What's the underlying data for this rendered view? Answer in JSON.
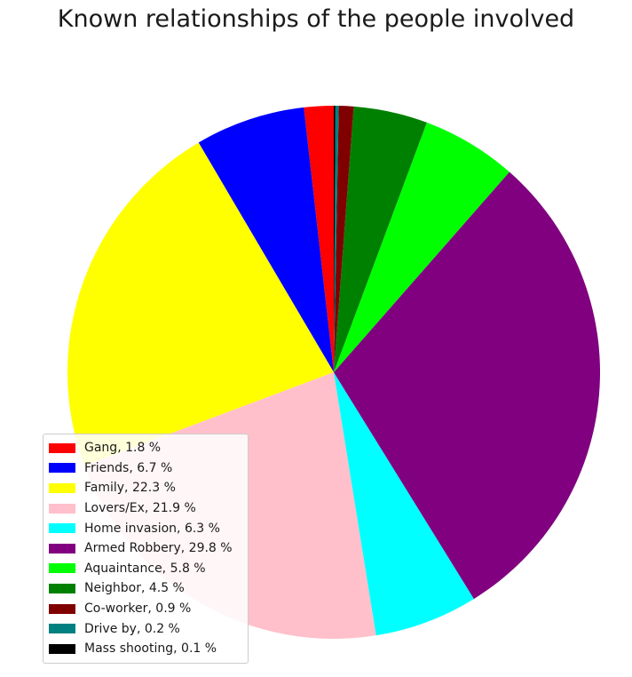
{
  "chart_data": {
    "type": "pie",
    "title": "Known relationships of the people involved",
    "slices": [
      {
        "label": "Gang, 1.8 %",
        "name": "Gang",
        "value": 1.8,
        "color": "#ff0000"
      },
      {
        "label": "Friends, 6.7 %",
        "name": "Friends",
        "value": 6.7,
        "color": "#0000ff"
      },
      {
        "label": "Family, 22.3 %",
        "name": "Family",
        "value": 22.3,
        "color": "#ffff00"
      },
      {
        "label": "Lovers/Ex, 21.9 %",
        "name": "Lovers/Ex",
        "value": 21.9,
        "color": "#ffc0cb"
      },
      {
        "label": "Home invasion, 6.3 %",
        "name": "Home invasion",
        "value": 6.3,
        "color": "#00ffff"
      },
      {
        "label": "Armed Robbery, 29.8 %",
        "name": "Armed Robbery",
        "value": 29.8,
        "color": "#800080"
      },
      {
        "label": "Aquaintance, 5.8 %",
        "name": "Aquaintance",
        "value": 5.8,
        "color": "#00ff00"
      },
      {
        "label": "Neighbor, 4.5 %",
        "name": "Neighbor",
        "value": 4.5,
        "color": "#008000"
      },
      {
        "label": "Co-worker, 0.9 %",
        "name": "Co-worker",
        "value": 0.9,
        "color": "#800000"
      },
      {
        "label": "Drive by, 0.2 %",
        "name": "Drive by",
        "value": 0.2,
        "color": "#008080"
      },
      {
        "label": "Mass shooting, 0.1 %",
        "name": "Mass shooting",
        "value": 0.1,
        "color": "#000000"
      }
    ],
    "start_angle": "top",
    "direction": "counterclockwise",
    "legend_position": "lower-left"
  }
}
